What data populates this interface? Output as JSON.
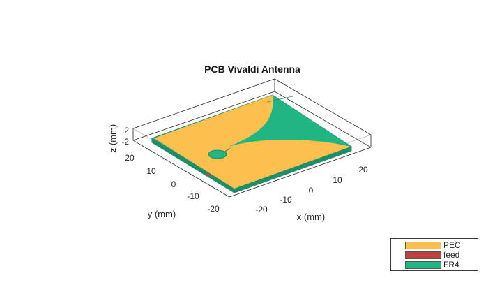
{
  "figure": {
    "title": "PCB Vivaldi Antenna",
    "x_label": "x (mm)",
    "y_label": "y (mm)",
    "z_label": "z (mm)"
  },
  "axes": {
    "x_ticks": [
      "-20",
      "-10",
      "0",
      "10",
      "20"
    ],
    "y_ticks": [
      "20",
      "10",
      "0",
      "-10",
      "-20"
    ],
    "z_ticks": [
      "2",
      "-2"
    ]
  },
  "colors": {
    "pec": "#fdbf4e",
    "feed": "#c0413f",
    "fr4": "#21b584",
    "edge": "#1e8e66"
  },
  "legend": {
    "items": [
      {
        "label": "PEC",
        "color": "#fdbf4e"
      },
      {
        "label": "feed",
        "color": "#c0413f"
      },
      {
        "label": "FR4",
        "color": "#21b584"
      }
    ]
  }
}
